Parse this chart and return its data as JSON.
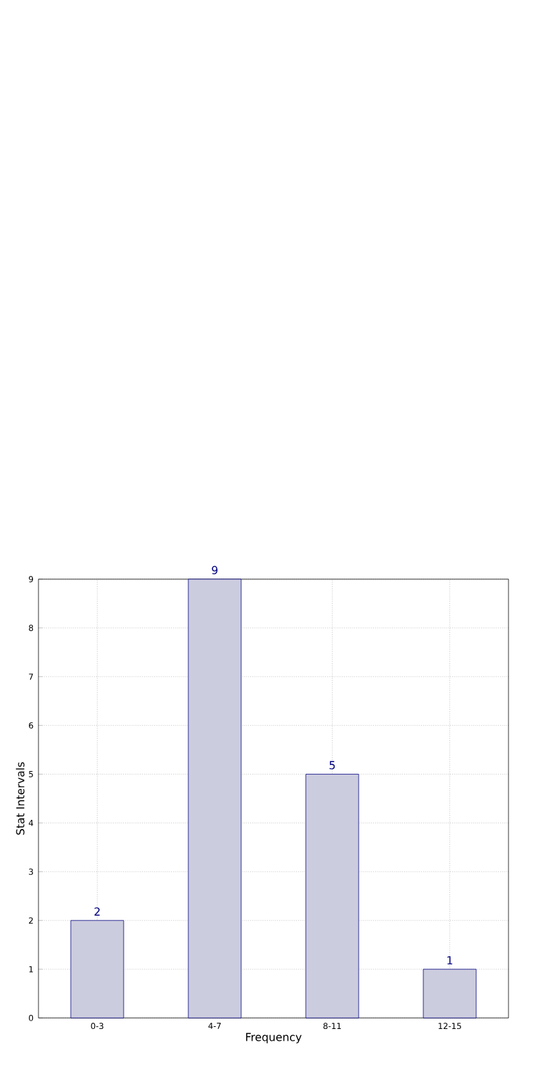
{
  "chart_data": {
    "type": "bar",
    "xlabel": "Frequency",
    "ylabel": "Stat Intervals",
    "categories": [
      "0-3",
      "4-7",
      "8-11",
      "12-15"
    ],
    "values": [
      2,
      9,
      5,
      1
    ],
    "color": "#ccccdf",
    "ylim": [
      0,
      9
    ],
    "yticks": [
      0,
      1,
      2,
      3,
      4,
      5,
      6,
      7,
      8,
      9
    ],
    "grid": true,
    "data_labels": true
  }
}
